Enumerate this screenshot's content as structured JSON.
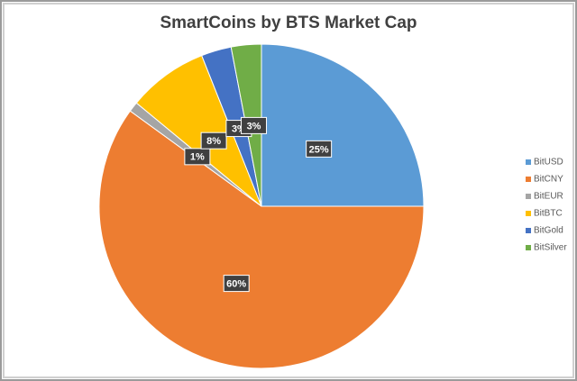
{
  "chart_data": {
    "type": "pie",
    "title": "SmartCoins by BTS Market Cap",
    "categories": [
      "BitUSD",
      "BitCNY",
      "BitEUR",
      "BitBTC",
      "BitGold",
      "BitSilver"
    ],
    "values": [
      25,
      60,
      1,
      8,
      3,
      3
    ],
    "value_labels": [
      "25%",
      "60%",
      "1%",
      "8%",
      "3%",
      "3%"
    ],
    "colors": [
      "#5b9bd5",
      "#ed7d31",
      "#a5a5a5",
      "#ffc000",
      "#4472c4",
      "#70ad47"
    ],
    "legend": "right"
  }
}
